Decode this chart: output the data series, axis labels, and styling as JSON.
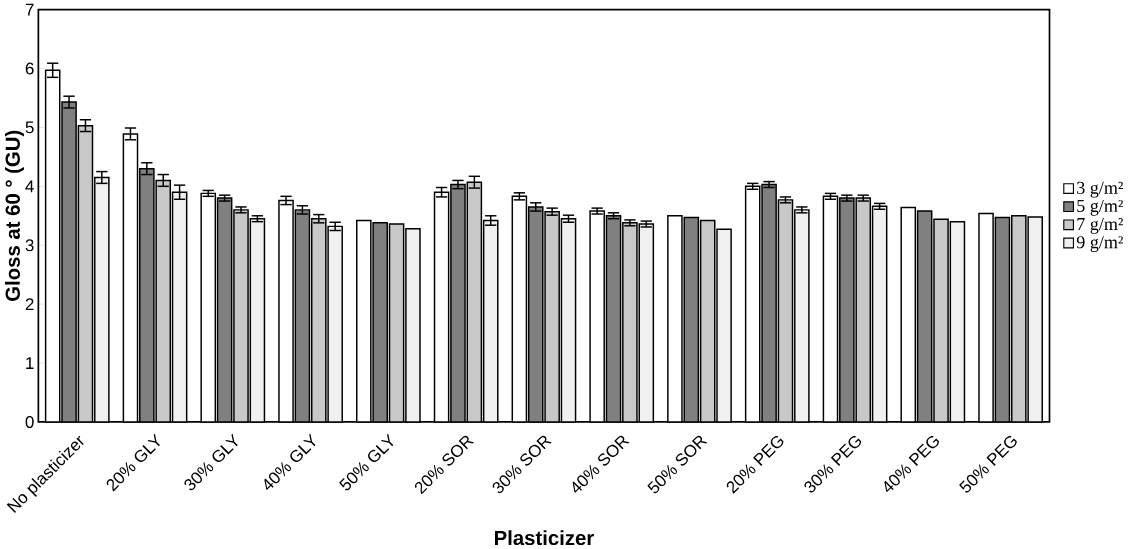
{
  "chart_data": {
    "type": "bar",
    "xlabel": "Plasticizer",
    "ylabel": "Gloss at 60 ° (GU)",
    "categories": [
      "No plasticizer",
      "20% GLY",
      "30% GLY",
      "40% GLY",
      "50% GLY",
      "20% SOR",
      "30% SOR",
      "40% SOR",
      "50% SOR",
      "20% PEG",
      "30% PEG",
      "40% PEG",
      "50% PEG"
    ],
    "series": [
      {
        "name": "3 g/m²",
        "color": "#ffffff",
        "values": [
          5.97,
          4.89,
          3.88,
          3.76,
          3.42,
          3.9,
          3.83,
          3.58,
          3.5,
          4.0,
          3.83,
          3.64,
          3.54
        ],
        "errors": [
          0.12,
          0.1,
          0.05,
          0.07,
          null,
          0.08,
          0.06,
          0.05,
          null,
          0.05,
          0.05,
          null,
          null
        ]
      },
      {
        "name": "5 g/m²",
        "color": "#808080",
        "values": [
          5.43,
          4.3,
          3.8,
          3.6,
          3.38,
          4.03,
          3.65,
          3.5,
          3.47,
          4.03,
          3.8,
          3.58,
          3.47
        ],
        "errors": [
          0.1,
          0.1,
          0.05,
          0.07,
          null,
          0.07,
          0.07,
          0.05,
          null,
          0.05,
          0.05,
          null,
          null
        ]
      },
      {
        "name": "7 g/m²",
        "color": "#c8c8c8",
        "values": [
          5.03,
          4.1,
          3.6,
          3.45,
          3.36,
          4.07,
          3.57,
          3.38,
          3.42,
          3.77,
          3.8,
          3.44,
          3.5
        ],
        "errors": [
          0.1,
          0.1,
          0.05,
          0.07,
          null,
          0.1,
          0.06,
          0.05,
          null,
          0.05,
          0.05,
          null,
          null
        ]
      },
      {
        "name": "9 g/m²",
        "color": "#f0f0f0",
        "values": [
          4.15,
          3.9,
          3.45,
          3.32,
          3.28,
          3.42,
          3.45,
          3.36,
          3.27,
          3.6,
          3.66,
          3.4,
          3.48
        ],
        "errors": [
          0.1,
          0.12,
          0.05,
          0.07,
          null,
          0.08,
          0.06,
          0.05,
          null,
          0.05,
          0.05,
          null,
          null
        ]
      }
    ],
    "ylim": [
      0,
      7
    ],
    "yticks": [
      0,
      1,
      2,
      3,
      4,
      5,
      6,
      7
    ],
    "grid": false,
    "legend": "right"
  }
}
